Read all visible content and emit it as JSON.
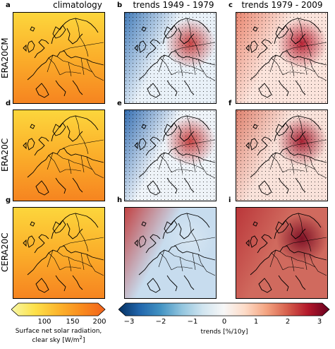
{
  "column_titles": [
    "climatology",
    "trends 1949 - 1979",
    "trends 1979 - 2009"
  ],
  "row_labels": [
    "ERA20CM",
    "ERA20C",
    "CERA20C"
  ],
  "panel_letters": [
    "a",
    "b",
    "c",
    "d",
    "e",
    "f",
    "g",
    "h",
    "i"
  ],
  "colorbar_left": {
    "ticks": [
      "100",
      "150",
      "200"
    ],
    "label_line1": "Surface net solar radiation,",
    "label_line2": "clear sky [W/m",
    "label_sup": "2",
    "label_end": "]",
    "range": [
      70,
      200
    ],
    "colors": [
      "#f7f7a6",
      "#fde14a",
      "#fcb52c",
      "#f98b1d",
      "#f2631c"
    ]
  },
  "colorbar_right": {
    "ticks": [
      "−3",
      "−2",
      "−1",
      "0",
      "1",
      "2",
      "3"
    ],
    "label": "trends [%/10y]",
    "range": [
      -3,
      3
    ],
    "colors": [
      "#053061",
      "#2166ac",
      "#4393c3",
      "#92c5de",
      "#d1e5f0",
      "#f7f7f7",
      "#fddbc7",
      "#f4a582",
      "#d6604d",
      "#b2182b",
      "#67001f"
    ]
  },
  "panels": [
    {
      "letter": "a",
      "type": "climatology"
    },
    {
      "letter": "b",
      "type": "trend",
      "base": "#e9f1f8",
      "ne": "#c43a3a",
      "nw": "#3a75b5",
      "stipple": true
    },
    {
      "letter": "c",
      "type": "trend",
      "base": "#fbe4dc",
      "ne": "#b2182b",
      "nw": "#e8826b",
      "stipple": true
    },
    {
      "letter": "d",
      "type": "climatology"
    },
    {
      "letter": "e",
      "type": "trend",
      "base": "#eef3f8",
      "ne": "#c43a3a",
      "nw": "#2c68ae",
      "stipple": true
    },
    {
      "letter": "f",
      "type": "trend",
      "base": "#f9e2da",
      "ne": "#a01528",
      "nw": "#dd7c68",
      "stipple": true
    },
    {
      "letter": "g",
      "type": "climatology"
    },
    {
      "letter": "h",
      "type": "trend",
      "base": "#c7dcee",
      "ne": "#d7e6f2",
      "nw": "#c23b3b",
      "stipple": false
    },
    {
      "letter": "i",
      "type": "trend",
      "base": "#d06a5e",
      "ne": "#7a0c22",
      "nw": "#b93438",
      "stipple": false
    }
  ]
}
